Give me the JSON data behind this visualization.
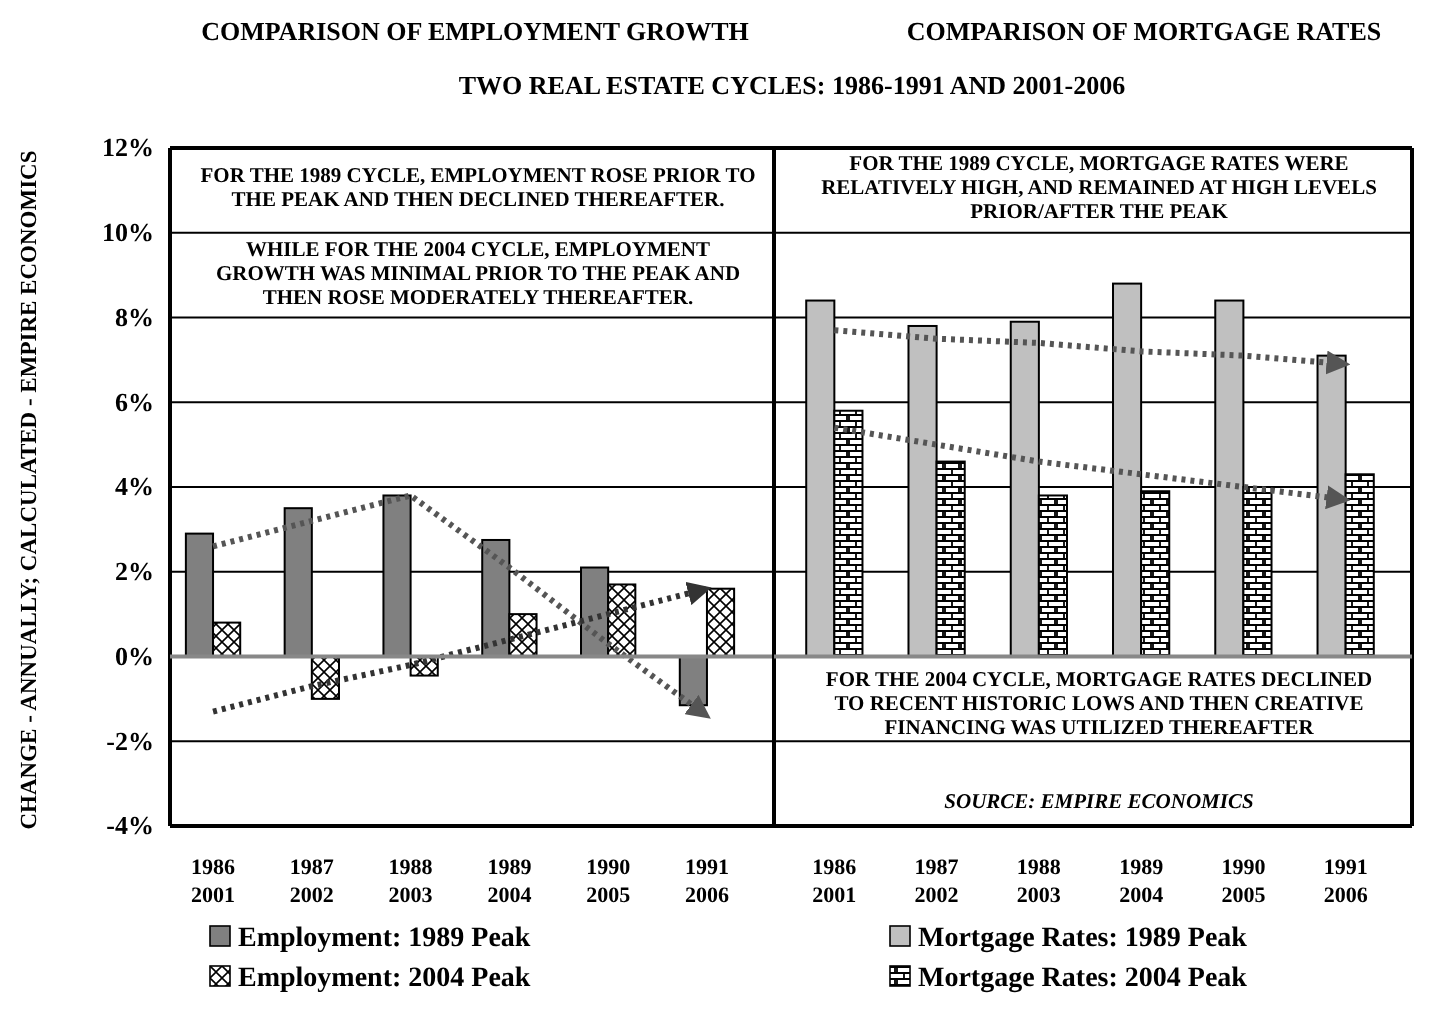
{
  "chart_data": [
    {
      "type": "bar",
      "title": "COMPARISON OF EMPLOYMENT GROWTH",
      "subtitle": "TWO REAL ESTATE CYCLES: 1986-1991 AND 2001-2006",
      "ylabel": "CHANGE - ANNUALLY; CALCULATED - EMPIRE ECONOMICS",
      "categories": [
        "1986\n2001",
        "1987\n2002",
        "1988\n2003",
        "1989\n2004",
        "1990\n2005",
        "1991\n2006"
      ],
      "ylim": [
        -4,
        12
      ],
      "yticks": [
        {
          "value": -4,
          "label": "-4%"
        },
        {
          "value": -2,
          "label": "-2%"
        },
        {
          "value": 0,
          "label": "0%"
        },
        {
          "value": 2,
          "label": "2%"
        },
        {
          "value": 4,
          "label": "4%"
        },
        {
          "value": 6,
          "label": "6%"
        },
        {
          "value": 8,
          "label": "8%"
        },
        {
          "value": 10,
          "label": "10%"
        },
        {
          "value": 12,
          "label": "12%"
        }
      ],
      "grid": "y",
      "legend": "bottom",
      "series": [
        {
          "name": "Employment: 1989 Peak",
          "color": "#808080",
          "values": [
            2.9,
            3.5,
            3.8,
            2.75,
            2.1,
            -1.15
          ]
        },
        {
          "name": "Employment: 2004 Peak",
          "color": "#000000",
          "values": [
            0.8,
            -1.0,
            -0.45,
            1.0,
            1.7,
            1.6
          ]
        },
        {
          "type": "line",
          "color": "#555555",
          "line_style": "dotted",
          "values": [
            2.6,
            3.2,
            3.8,
            2.1,
            0.3,
            -1.4
          ]
        },
        {
          "type": "line",
          "color": "#333333",
          "line_style": "dotted",
          "values": [
            -1.3,
            -0.7,
            -0.2,
            0.4,
            1.0,
            1.6
          ]
        }
      ],
      "annotations": [
        "FOR THE 1989 CYCLE, EMPLOYMENT ROSE PRIOR TO THE PEAK AND THEN DECLINED THEREAFTER.",
        "WHILE FOR THE 2004 CYCLE, EMPLOYMENT GROWTH WAS MINIMAL PRIOR TO THE PEAK AND THEN ROSE MODERATELY THEREAFTER."
      ]
    },
    {
      "type": "bar",
      "title": "COMPARISON OF MORTGAGE RATES",
      "categories": [
        "1986\n2001",
        "1987\n2002",
        "1988\n2003",
        "1989\n2004",
        "1990\n2005",
        "1991\n2006"
      ],
      "ylim": [
        -4,
        12
      ],
      "yticks": [
        -4,
        -2,
        0,
        2,
        4,
        6,
        8,
        10,
        12
      ],
      "tick_labels": "x",
      "grid": "y",
      "legend": "bottom",
      "series": [
        {
          "name": "Mortgage Rates: 1989 Peak",
          "color": "#c0c0c0",
          "values": [
            8.4,
            7.8,
            7.9,
            8.8,
            8.4,
            7.1
          ]
        },
        {
          "name": "Mortgage Rates: 2004 Peak",
          "color": "#000000",
          "values": [
            5.8,
            4.6,
            3.8,
            3.9,
            4.0,
            4.3
          ]
        },
        {
          "type": "line",
          "color": "#555555",
          "line_style": "dotted",
          "values": [
            7.7,
            7.5,
            7.4,
            7.2,
            7.1,
            6.9
          ]
        },
        {
          "type": "line",
          "color": "#555555",
          "line_style": "dotted",
          "values": [
            5.4,
            5.0,
            4.6,
            4.3,
            4.0,
            3.7
          ]
        }
      ],
      "annotations": [
        "FOR THE 1989 CYCLE, MORTGAGE RATES WERE RELATIVELY HIGH, AND REMAINED AT HIGH LEVELS PRIOR/AFTER THE PEAK",
        "FOR THE 2004 CYCLE, MORTGAGE RATES DECLINED TO RECENT HISTORIC LOWS AND THEN CREATIVE FINANCING WAS UTILIZED THEREAFTER",
        "SOURCE: EMPIRE ECONOMICS"
      ]
    }
  ]
}
